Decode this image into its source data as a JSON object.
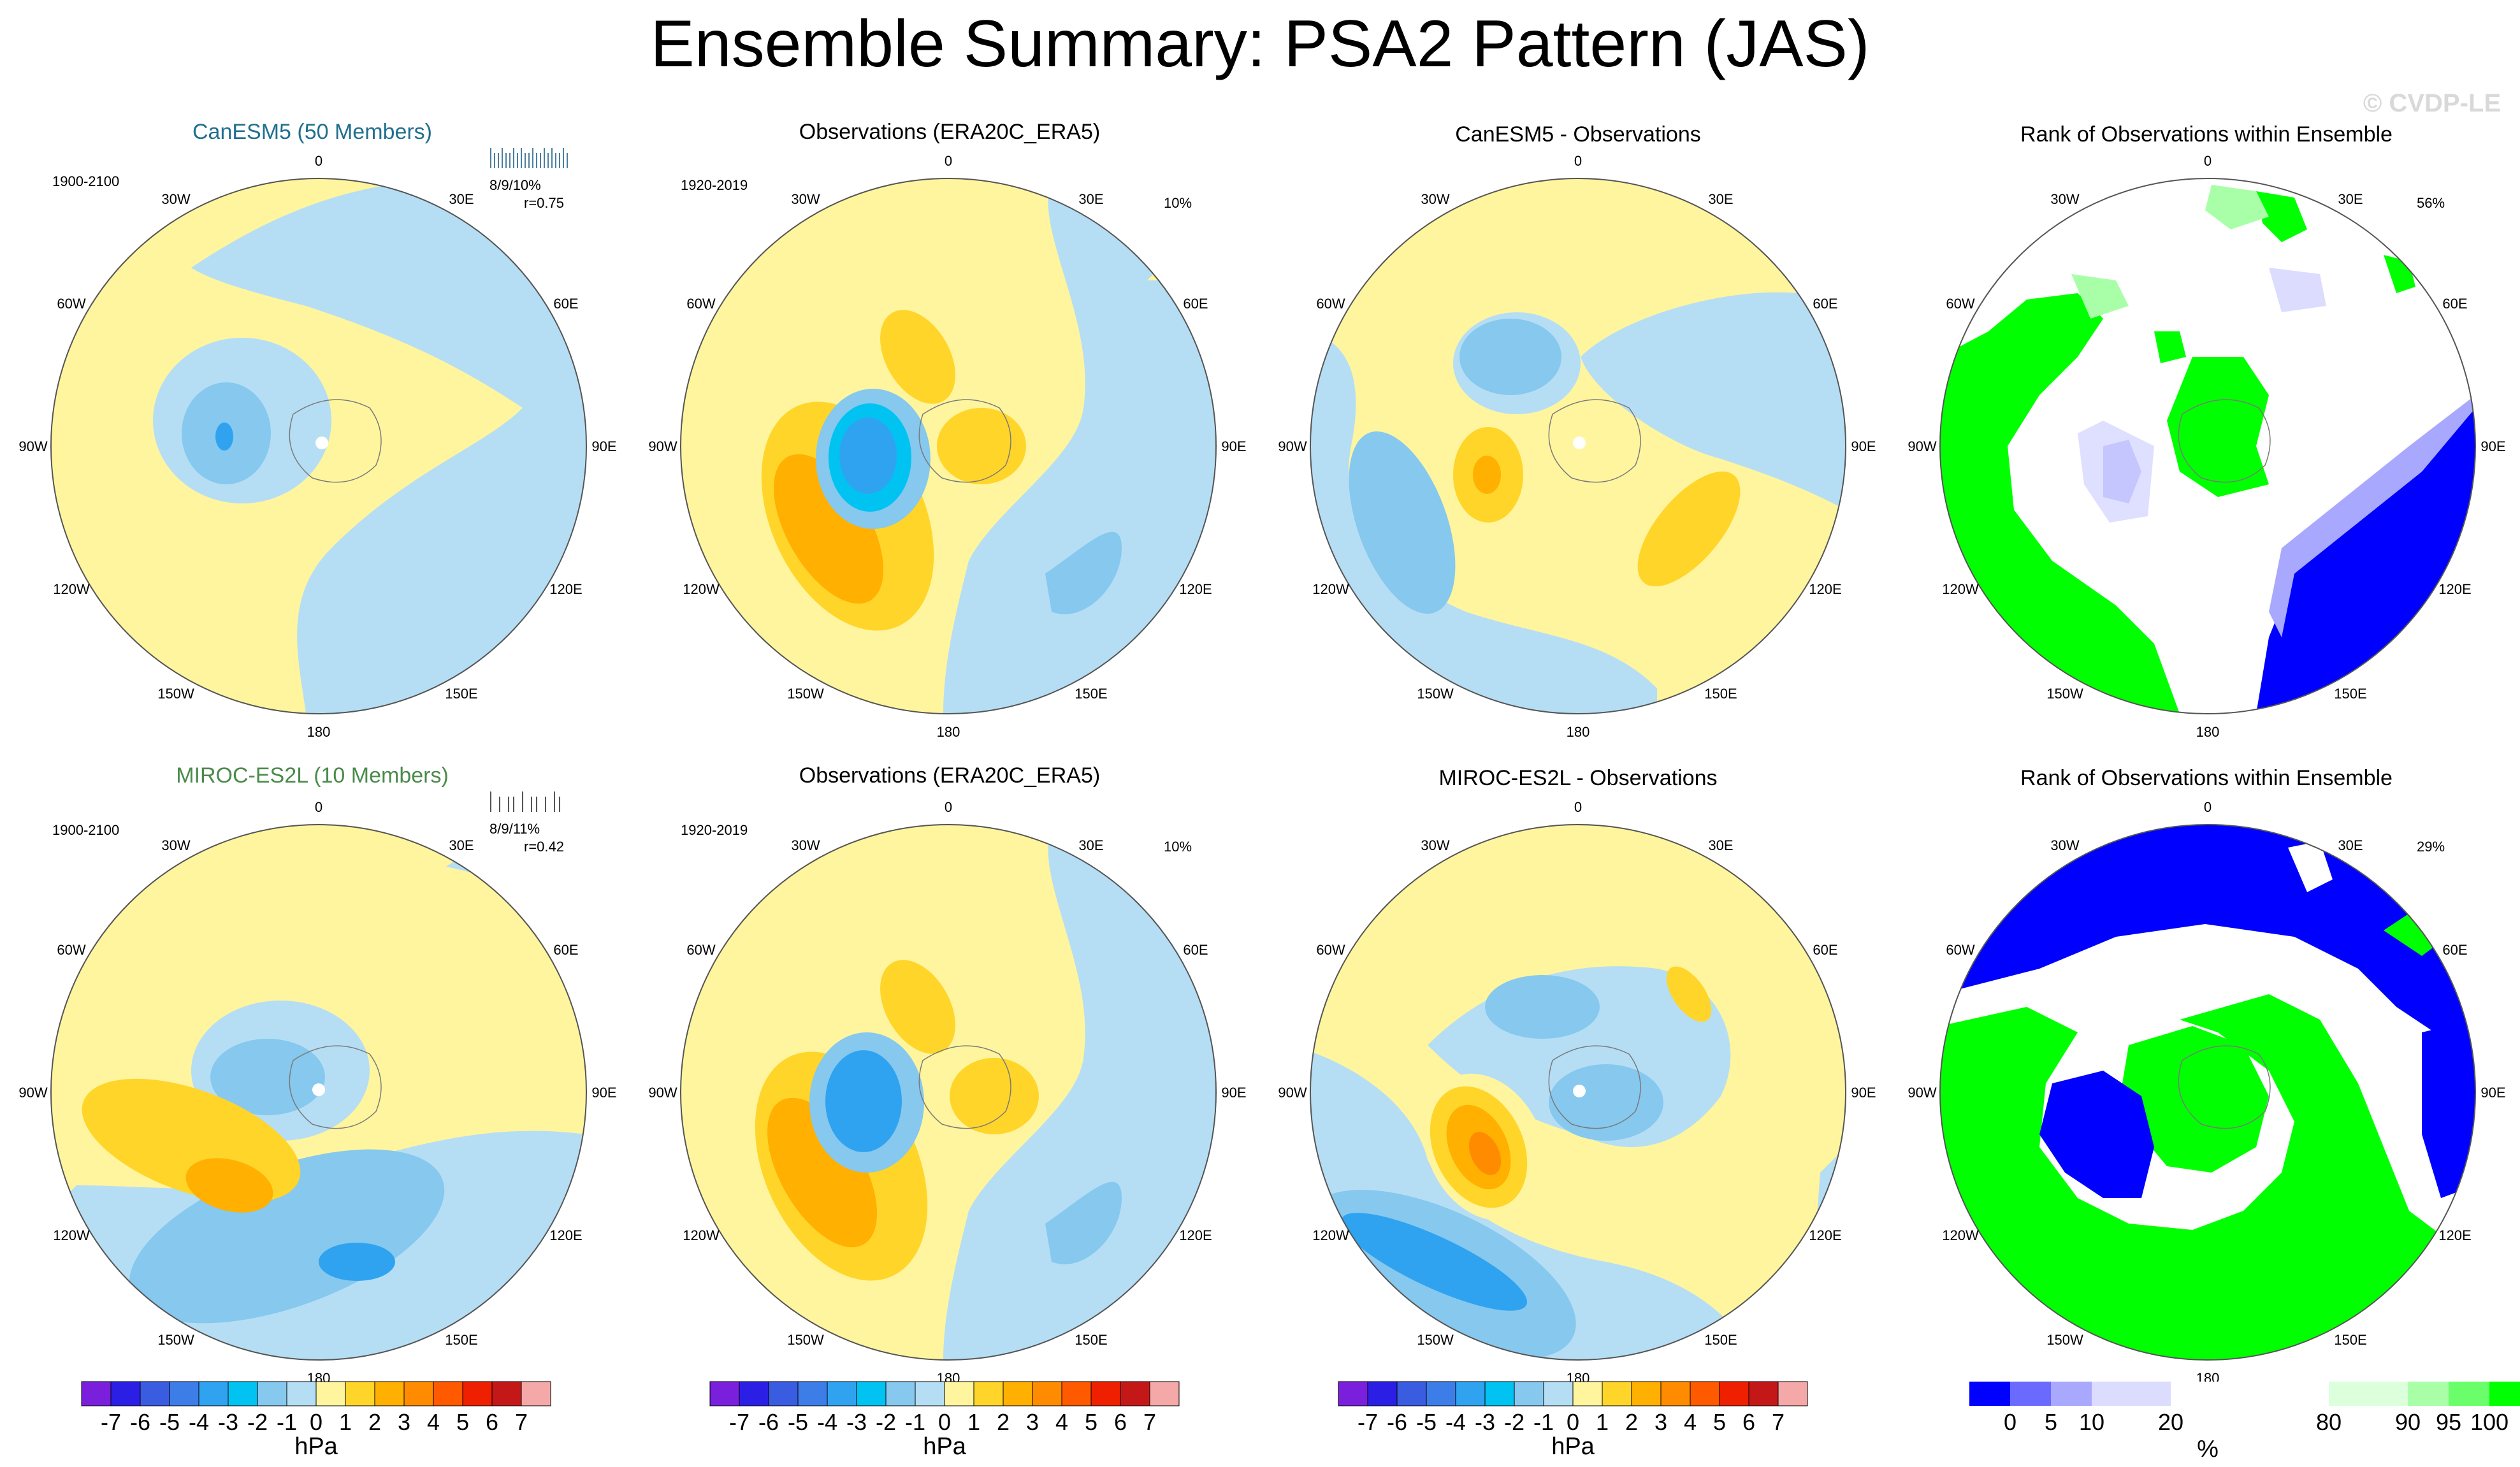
{
  "title": "Ensemble Summary: PSA2 Pattern (JAS)",
  "watermark": "© CVDP-LE",
  "colors": {
    "land_ocean_bg": "#ffffff",
    "bar_colors_hpa": [
      "#7a1fdc",
      "#2b1fe6",
      "#3a5ce0",
      "#3d7de8",
      "#2fa3f0",
      "#00c3f2",
      "#86c8ee",
      "#b5def5",
      "#fff59e",
      "#ffd52a",
      "#ffb000",
      "#ff8c00",
      "#ff5a00",
      "#ee2000",
      "#c41818",
      "#f4a8a8"
    ],
    "rank_colors": [
      "#0000ff",
      "#6a6aff",
      "#a8a8ff",
      "#dcdcff",
      "#ffffff",
      "#ffffff",
      "#dcffdc",
      "#a8ffa8",
      "#6aff6a",
      "#00ff00"
    ]
  },
  "lon_labels": [
    "0",
    "30E",
    "60E",
    "90E",
    "120E",
    "150E",
    "180",
    "150W",
    "120W",
    "90W",
    "60W",
    "30W"
  ],
  "rows": [
    {
      "model": {
        "title": "CanESM5 (50 Members)",
        "title_color": "#1f6f8f",
        "years": "1900-2100",
        "stats": "8/9/10%",
        "corr": "r=0.75"
      },
      "obs": {
        "title": "Observations (ERA20C_ERA5)",
        "years": "1920-2019",
        "pct": "10%"
      },
      "diff": {
        "title": "CanESM5 - Observations"
      },
      "rank": {
        "title": "Rank of Observations within Ensemble",
        "pct": "56%"
      }
    },
    {
      "model": {
        "title": "MIROC-ES2L (10 Members)",
        "title_color": "#4a8a4a",
        "years": "1900-2100",
        "stats": "8/9/11%",
        "corr": "r=0.42"
      },
      "obs": {
        "title": "Observations (ERA20C_ERA5)",
        "years": "1920-2019",
        "pct": "10%"
      },
      "diff": {
        "title": "MIROC-ES2L - Observations"
      },
      "rank": {
        "title": "Rank of Observations within Ensemble",
        "pct": "29%"
      }
    }
  ],
  "colorbar_hpa": {
    "labels": [
      "-7",
      "-6",
      "-5",
      "-4",
      "-3",
      "-2",
      "-1",
      "0",
      "1",
      "2",
      "3",
      "4",
      "5",
      "6",
      "7"
    ],
    "unit": "hPa"
  },
  "colorbar_rank": {
    "labels": [
      "0",
      "5",
      "10",
      "20",
      "80",
      "90",
      "95",
      "100"
    ],
    "unit": "%"
  },
  "chart_data": {
    "type": "heatmap",
    "title": "Ensemble Summary: PSA2 Pattern (JAS)",
    "projection": "south polar stereographic",
    "units": "hPa",
    "contour_levels": [
      -7,
      -6,
      -5,
      -4,
      -3,
      -2,
      -1,
      0,
      1,
      2,
      3,
      4,
      5,
      6,
      7
    ],
    "rank_levels": [
      0,
      5,
      10,
      20,
      80,
      90,
      95,
      100
    ],
    "panels": [
      {
        "row": 1,
        "name": "CanESM5 (50 Members)",
        "period": "1900-2100",
        "pct_variance": "8/9/10%",
        "pattern_corr": 0.75
      },
      {
        "row": 1,
        "name": "Observations (ERA20C_ERA5)",
        "period": "1920-2019",
        "pct_variance": "10%"
      },
      {
        "row": 1,
        "name": "CanESM5 - Observations"
      },
      {
        "row": 1,
        "name": "Rank of Observations within Ensemble",
        "pct": "56%"
      },
      {
        "row": 2,
        "name": "MIROC-ES2L (10 Members)",
        "period": "1900-2100",
        "pct_variance": "8/9/11%",
        "pattern_corr": 0.42
      },
      {
        "row": 2,
        "name": "Observations (ERA20C_ERA5)",
        "period": "1920-2019",
        "pct_variance": "10%"
      },
      {
        "row": 2,
        "name": "MIROC-ES2L - Observations"
      },
      {
        "row": 2,
        "name": "Rank of Observations within Ensemble",
        "pct": "29%"
      }
    ]
  }
}
